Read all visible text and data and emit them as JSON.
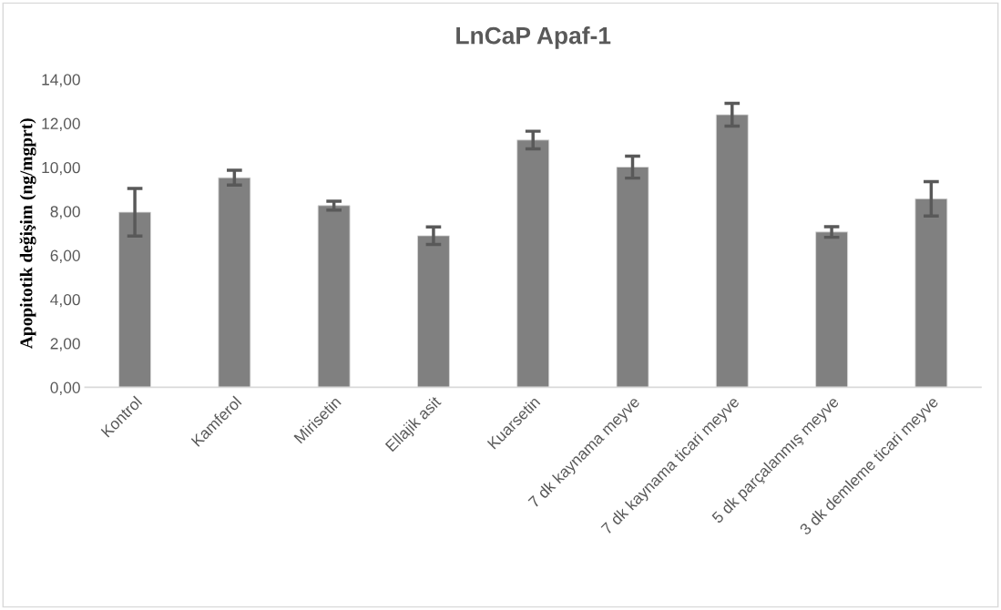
{
  "chart_data": {
    "type": "bar",
    "title": "LnCaP Apaf-1",
    "ylabel": "Apopitotik değişim (ng/mgprt)",
    "categories": [
      "Kontrol",
      "Kamferol",
      "Mirisetin",
      "Ellajik asit",
      "Kuarsetin",
      "7 dk kaynama meyve",
      "7 dk kaynama ticari meyve",
      "5 dk parçalanmış meyve",
      "3 dk demleme ticari meyve"
    ],
    "values": [
      7.96,
      9.53,
      8.26,
      6.89,
      11.24,
      10.01,
      12.39,
      7.06,
      8.57
    ],
    "errors": [
      1.08,
      0.34,
      0.2,
      0.4,
      0.4,
      0.5,
      0.52,
      0.24,
      0.78
    ],
    "color": "#808080",
    "ylim": [
      0,
      14
    ],
    "yticks": [
      {
        "value": 0,
        "label": "0,00"
      },
      {
        "value": 2,
        "label": "2,00"
      },
      {
        "value": 4,
        "label": "4,00"
      },
      {
        "value": 6,
        "label": "6,00"
      },
      {
        "value": 8,
        "label": "8,00"
      },
      {
        "value": 10,
        "label": "10,00"
      },
      {
        "value": 12,
        "label": "12,00"
      },
      {
        "value": 14,
        "label": "14,00"
      }
    ],
    "grid": false,
    "legend": false
  }
}
